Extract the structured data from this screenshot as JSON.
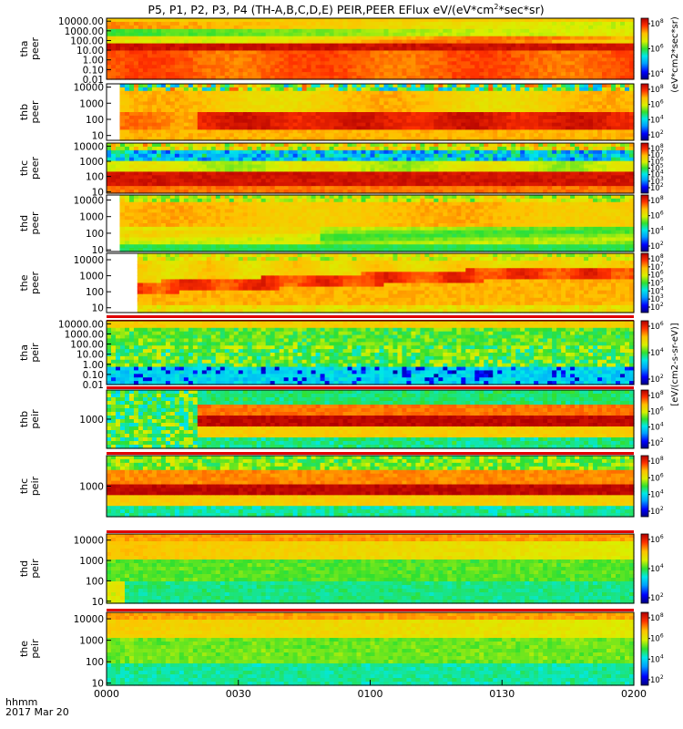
{
  "chart_data": {
    "type": "heatmap",
    "title": "P5, P1, P2, P3, P4 (TH-A,B,C,D,E) PEIR,PEER EFlux eV/(eV*cm",
    "title_sup": "2",
    "title_end": "*sec*sr)",
    "xaxis": {
      "label_line1": "hhmm",
      "label_line2": "2017 Mar 20",
      "ticks": [
        "0000",
        "0030",
        "0100",
        "0130",
        "0200"
      ],
      "range_minutes": [
        0,
        120
      ]
    },
    "colorbar_label": "[eV/(cm2-s-sr-eV)]",
    "colorbar_label_top": "(eV*cm2*sec*sr)",
    "panels": [
      {
        "line1": "tha",
        "line2": "peer",
        "yticks": [
          "10000.00",
          "1000.00",
          "100.00",
          "10.00",
          "1.00",
          "0.10",
          "0.01"
        ],
        "ylog": [
          -2,
          4.3
        ],
        "cbar_ticks": [
          "8",
          "6",
          "4"
        ],
        "start_min": 0,
        "profile": "tha_peer"
      },
      {
        "line1": "thb",
        "line2": "peer",
        "yticks": [
          "10000",
          "1000",
          "100",
          "10"
        ],
        "ylog": [
          0.7,
          4.2
        ],
        "cbar_ticks": [
          "8",
          "6",
          "4",
          "2"
        ],
        "start_min": 3,
        "profile": "thb_peer"
      },
      {
        "line1": "thc",
        "line2": "peer",
        "yticks": [
          "10000",
          "1000",
          "100",
          "10"
        ],
        "ylog": [
          0.9,
          4.2
        ],
        "cbar_ticks": [
          "8",
          "7",
          "6",
          "5",
          "4",
          "3",
          "2"
        ],
        "start_min": 0,
        "profile": "thc_peer"
      },
      {
        "line1": "thd",
        "line2": "peer",
        "yticks": [
          "10000",
          "1000",
          "100",
          "10"
        ],
        "ylog": [
          0.9,
          4.3
        ],
        "cbar_ticks": [
          "8",
          "6",
          "4",
          "2"
        ],
        "start_min": 3,
        "profile": "thd_peer"
      },
      {
        "line1": "the",
        "line2": "peer",
        "yticks": [
          "10000",
          "1000",
          "100",
          "10"
        ],
        "ylog": [
          0.7,
          4.4
        ],
        "cbar_ticks": [
          "8",
          "7",
          "6",
          "5",
          "4",
          "3",
          "2"
        ],
        "start_min": 7,
        "profile": "the_peer"
      },
      {
        "line1": "tha",
        "line2": "peir",
        "yticks": [
          "10000.00",
          "1000.00",
          "100.00",
          "10.00",
          "1.00",
          "0.10",
          "0.01"
        ],
        "ylog": [
          -2,
          4.3
        ],
        "cbar_ticks": [
          "6",
          "4",
          "2"
        ],
        "start_min": 0,
        "profile": "tha_peir"
      },
      {
        "line1": "thb",
        "line2": "peir",
        "yticks": [
          "1000"
        ],
        "ylog": [
          2.2,
          3.8
        ],
        "cbar_ticks": [
          "8",
          "6",
          "4",
          "2"
        ],
        "start_min": 0,
        "profile": "thb_peir"
      },
      {
        "line1": "thc",
        "line2": "peir",
        "yticks": [
          "1000"
        ],
        "ylog": [
          2.2,
          3.8
        ],
        "cbar_ticks": [
          "8",
          "6",
          "4",
          "2"
        ],
        "start_min": 0,
        "profile": "thc_peir"
      },
      {
        "line1": "thd",
        "line2": "peir",
        "yticks": [
          "10000",
          "1000",
          "100",
          "10"
        ],
        "ylog": [
          0.9,
          4.3
        ],
        "cbar_ticks": [
          "6",
          "4",
          "2"
        ],
        "start_min": 0,
        "profile": "thd_peir"
      },
      {
        "line1": "the",
        "line2": "peir",
        "yticks": [
          "10000",
          "1000",
          "100",
          "10"
        ],
        "ylog": [
          0.9,
          4.3
        ],
        "cbar_ticks": [
          "8",
          "6",
          "4",
          "2"
        ],
        "start_min": 0,
        "profile": "the_peir"
      }
    ]
  }
}
